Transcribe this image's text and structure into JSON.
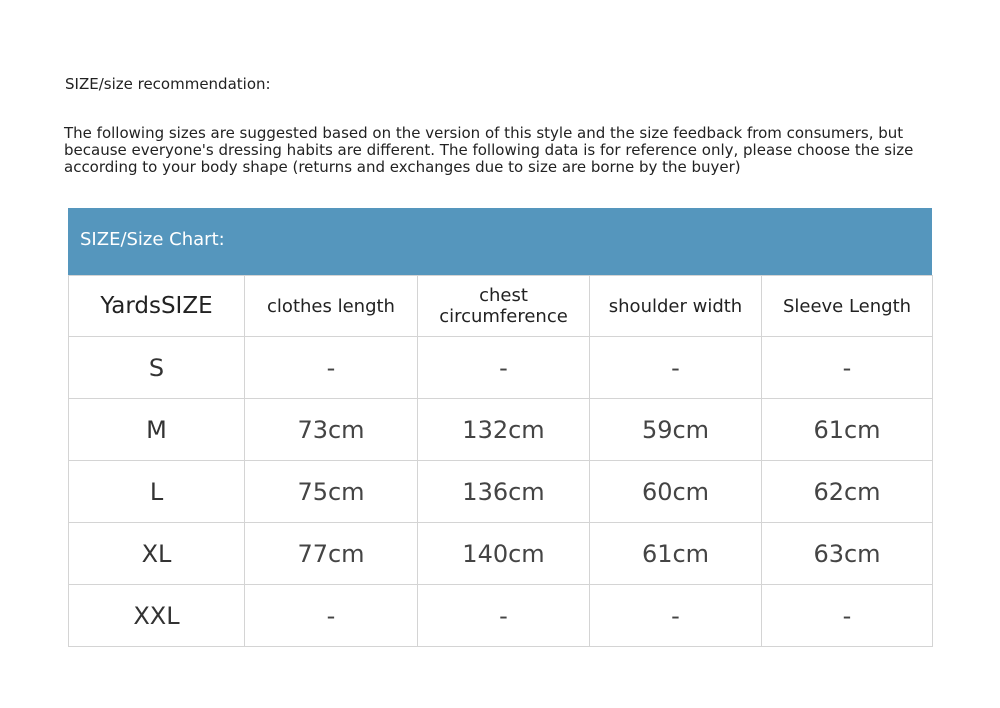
{
  "title": "SIZE/size recommendation:",
  "description": "The following sizes are suggested based on the version of this style and the size feedback from consumers, but because everyone's dressing habits are different. The following data is for reference only, please choose the size according to your body shape (returns and exchanges due to size are borne by the buyer)",
  "table": {
    "heading": "SIZE/Size Chart:",
    "header_color": "#5596bd",
    "columns": [
      "YardsSIZE",
      "clothes length",
      "chest circumference",
      "shoulder width",
      "Sleeve Length"
    ],
    "rows": [
      [
        "S",
        "-",
        "-",
        "-",
        "-"
      ],
      [
        "M",
        "73cm",
        "132cm",
        "59cm",
        "61cm"
      ],
      [
        "L",
        "75cm",
        "136cm",
        "60cm",
        "62cm"
      ],
      [
        "XL",
        "77cm",
        "140cm",
        "61cm",
        "63cm"
      ],
      [
        "XXL",
        "-",
        "-",
        "-",
        "-"
      ]
    ]
  }
}
